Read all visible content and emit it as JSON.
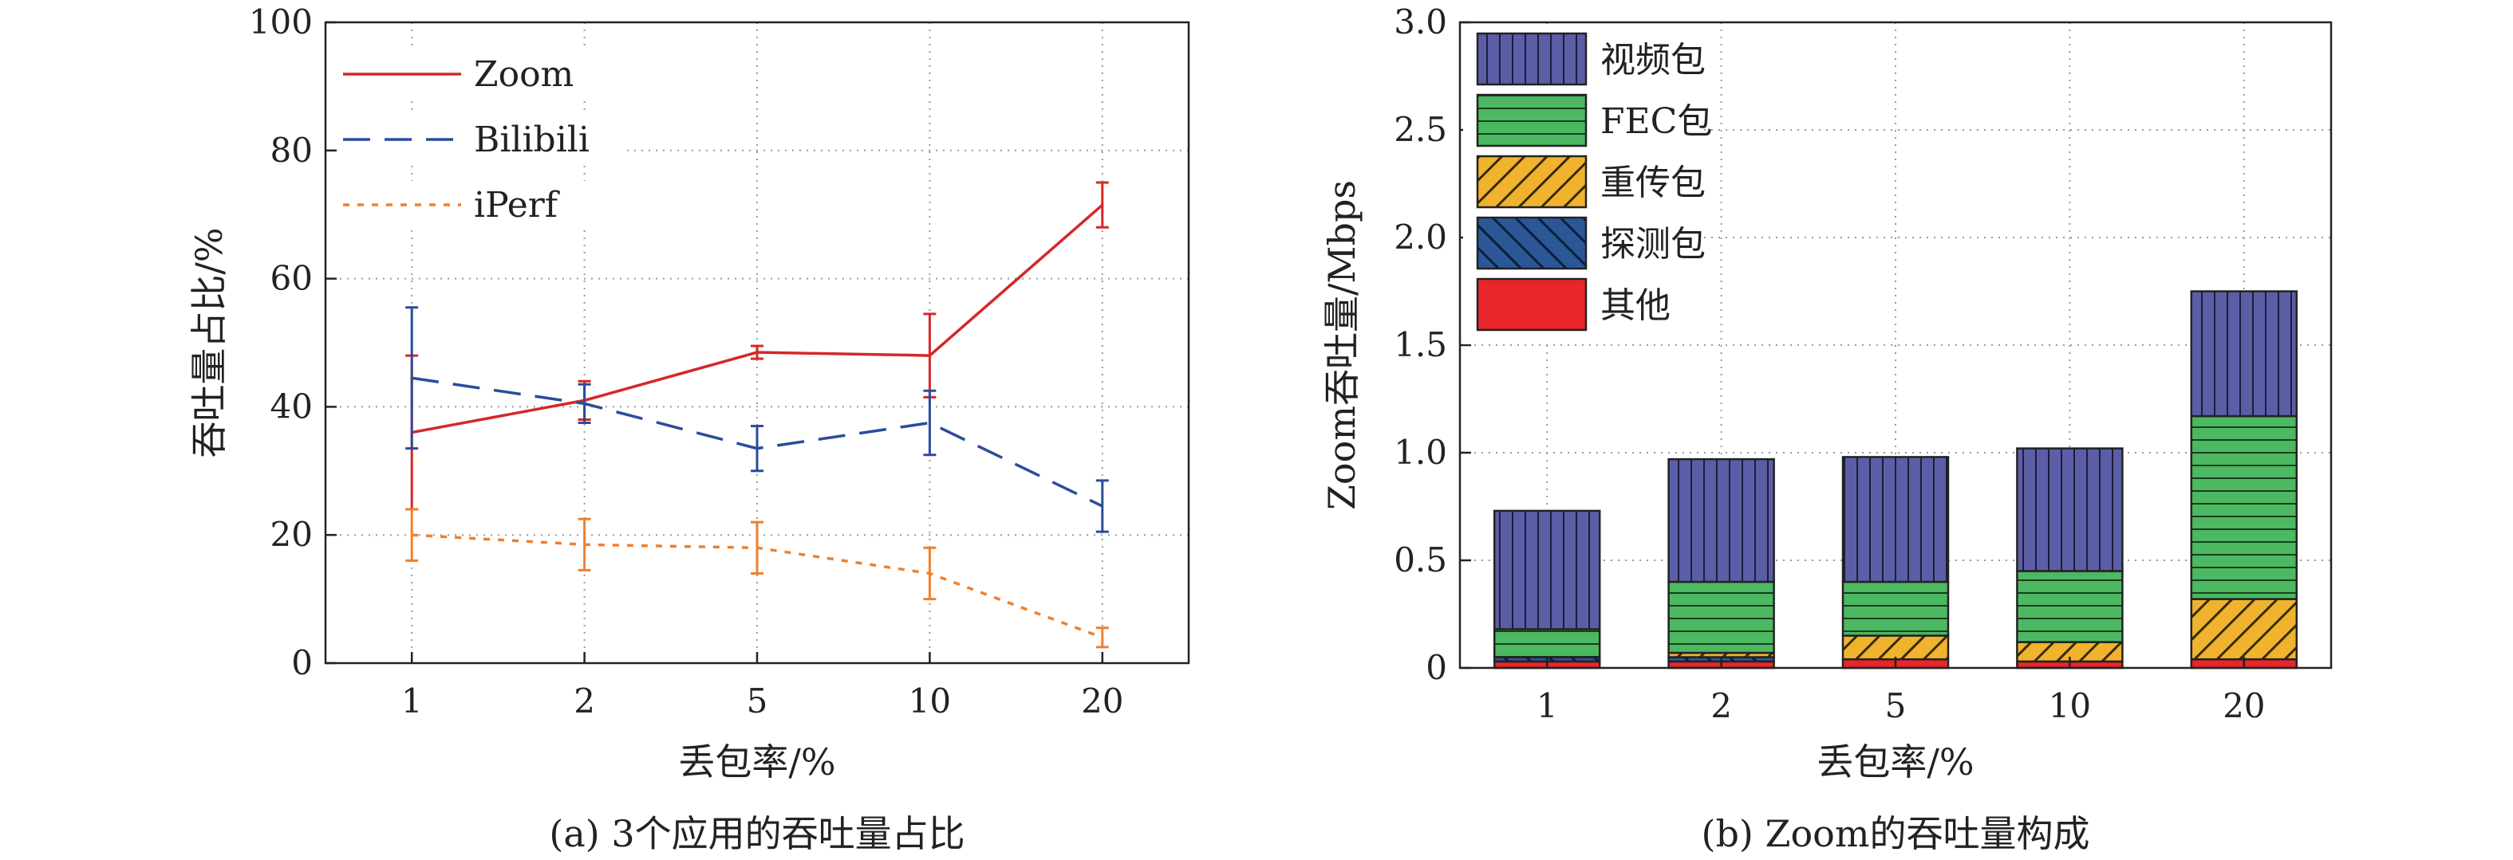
{
  "chart_data": [
    {
      "type": "line",
      "caption": "(a) 3个应用的吞吐量占比",
      "xlabel": "丢包率/%",
      "ylabel": "吞吐量占比/%",
      "categories": [
        "1",
        "2",
        "5",
        "10",
        "20"
      ],
      "ylim": [
        0,
        100
      ],
      "yticks": [
        0,
        20,
        40,
        60,
        80,
        100
      ],
      "grid": true,
      "legend_position": "top-left",
      "series": [
        {
          "name": "Zoom",
          "color": "#d62728",
          "dash": "solid",
          "values": [
            36,
            41,
            48.5,
            48,
            71.5
          ],
          "errors": [
            [
              12,
              12
            ],
            [
              3,
              3
            ],
            [
              1,
              1
            ],
            [
              6.5,
              6.5
            ],
            [
              3.5,
              3.5
            ]
          ]
        },
        {
          "name": "Bilibili",
          "color": "#2b4c9b",
          "dash": "dashed",
          "values": [
            44.5,
            40.5,
            33.5,
            37.5,
            24.5
          ],
          "errors": [
            [
              11,
              11
            ],
            [
              3,
              3
            ],
            [
              3.5,
              3.5
            ],
            [
              5,
              5
            ],
            [
              4,
              4
            ]
          ]
        },
        {
          "name": "iPerf",
          "color": "#f07f2c",
          "dash": "dotted",
          "values": [
            20,
            18.5,
            18,
            14,
            4
          ],
          "errors": [
            [
              4,
              4
            ],
            [
              4,
              4
            ],
            [
              4,
              4
            ],
            [
              4,
              4
            ],
            [
              1.5,
              1.5
            ]
          ]
        }
      ]
    },
    {
      "type": "bar",
      "stacked": true,
      "caption": "(b) Zoom的吞吐量构成",
      "xlabel": "丢包率/%",
      "ylabel": "Zoom吞吐量/Mbps",
      "categories": [
        "1",
        "2",
        "5",
        "10",
        "20"
      ],
      "ylim": [
        0,
        3.0
      ],
      "yticks": [
        "0",
        "0.5",
        "1.0",
        "1.5",
        "2.0",
        "2.5",
        "3.0"
      ],
      "grid": true,
      "legend_position": "top-left",
      "series": [
        {
          "name": "其他",
          "color": "#e8262a",
          "pattern": "solid",
          "values": [
            0.03,
            0.03,
            0.04,
            0.03,
            0.04
          ]
        },
        {
          "name": "探测包",
          "color": "#2b5797",
          "pattern": "diagonal-left",
          "values": [
            0.02,
            0.02,
            0.0,
            0.0,
            0.0
          ]
        },
        {
          "name": "重传包",
          "color": "#f0b32d",
          "pattern": "diagonal-right",
          "values": [
            0.0,
            0.02,
            0.11,
            0.09,
            0.28
          ]
        },
        {
          "name": "FEC包",
          "color": "#4cb861",
          "pattern": "horizontal",
          "values": [
            0.13,
            0.33,
            0.25,
            0.33,
            0.85
          ]
        },
        {
          "name": "视频包",
          "color": "#5b5ea6",
          "pattern": "vertical",
          "values": [
            0.55,
            0.57,
            0.58,
            0.57,
            0.58
          ]
        }
      ],
      "legend_order": [
        "视频包",
        "FEC包",
        "重传包",
        "探测包",
        "其他"
      ]
    }
  ]
}
